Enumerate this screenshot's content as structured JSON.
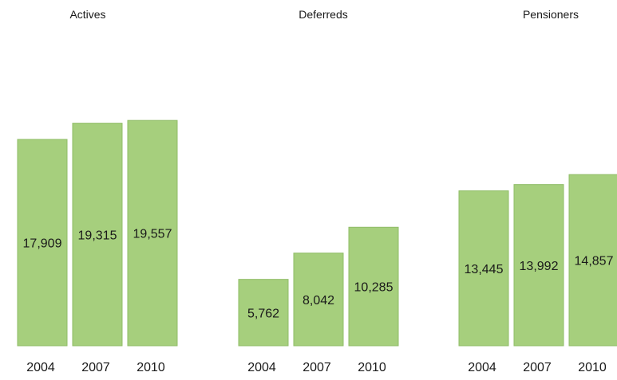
{
  "chart_data": [
    {
      "type": "bar",
      "title": "Actives",
      "categories": [
        "2004",
        "2007",
        "2010"
      ],
      "values": [
        17909,
        19315,
        19557
      ],
      "value_labels": [
        "17,909",
        "19,315",
        "19,557"
      ],
      "grid": false,
      "legend": "none"
    },
    {
      "type": "bar",
      "title": "Deferreds",
      "categories": [
        "2004",
        "2007",
        "2010"
      ],
      "values": [
        5762,
        8042,
        10285
      ],
      "value_labels": [
        "5,762",
        "8,042",
        "10,285"
      ],
      "grid": false,
      "legend": "none"
    },
    {
      "type": "bar",
      "title": "Pensioners",
      "categories": [
        "2004",
        "2007",
        "2010"
      ],
      "values": [
        13445,
        13992,
        14857
      ],
      "value_labels": [
        "13,445",
        "13,992",
        "14,857"
      ],
      "grid": false,
      "legend": "none"
    }
  ],
  "colors": {
    "bar_fill": "#a6cf7d",
    "bar_stroke": "#8fbc66",
    "text": "#1a1a1a"
  }
}
